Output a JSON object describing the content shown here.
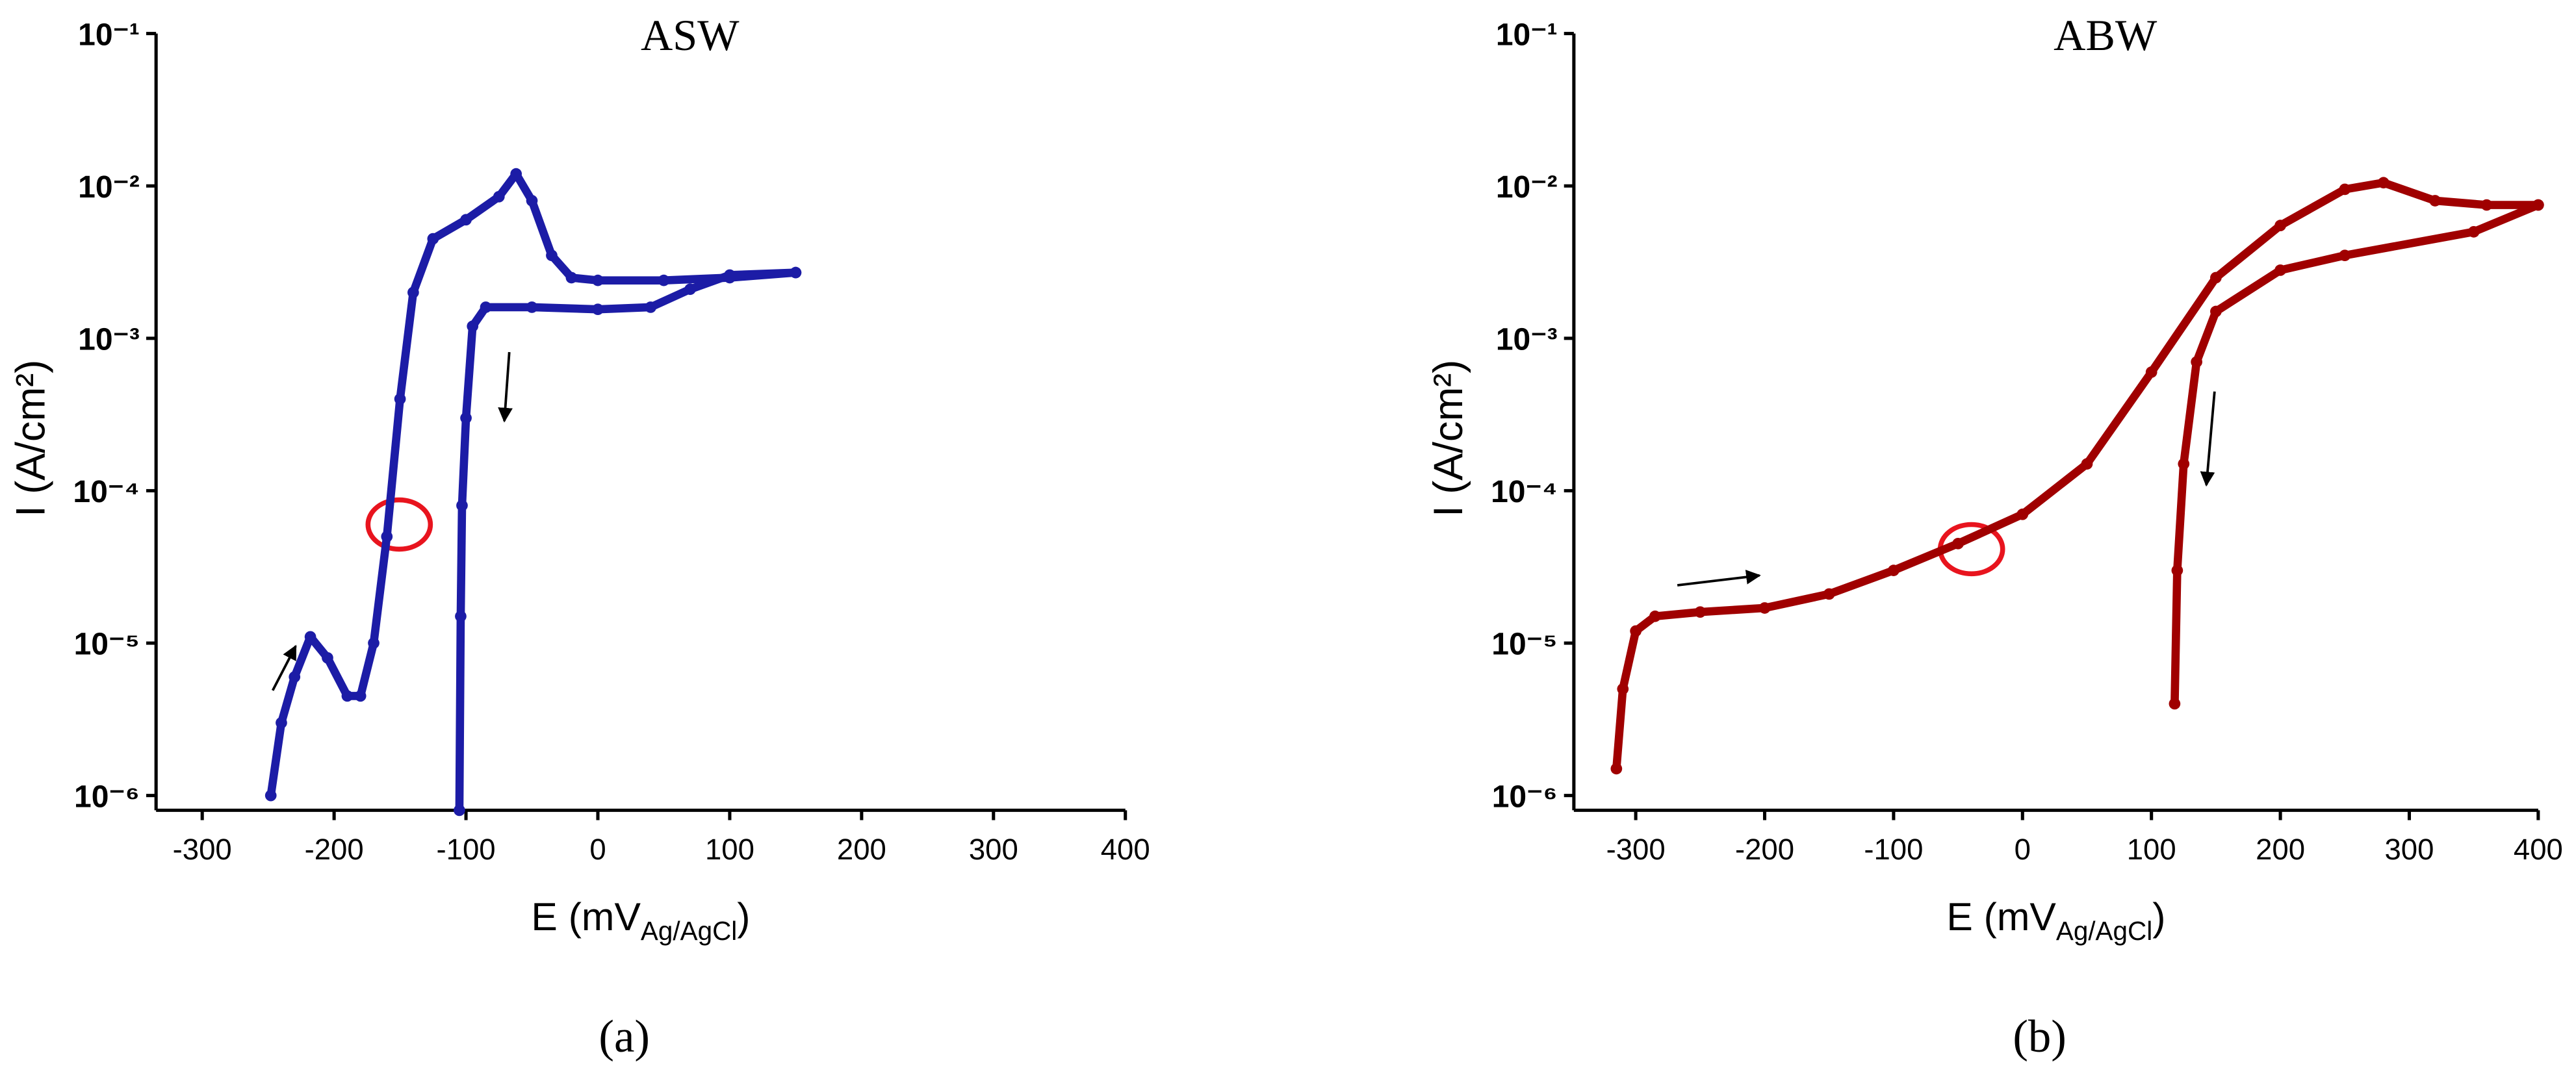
{
  "chart_data": [
    {
      "type": "line",
      "title": "ASW",
      "panel": "(a)",
      "ylabel": "I (A/cm²)",
      "xlabel": {
        "text": "E (mV",
        "subscript": "Ag/AgCl",
        "tail": ")"
      },
      "xlim": [
        -335,
        400
      ],
      "xticks": [
        -300,
        -200,
        -100,
        0,
        100,
        200,
        300,
        400
      ],
      "ylim": [
        8e-07,
        0.1
      ],
      "ylog": true,
      "yticks": [
        {
          "value": 1e-06,
          "label": "10⁻⁶"
        },
        {
          "value": 1e-05,
          "label": "10⁻⁵"
        },
        {
          "value": 0.0001,
          "label": "10⁻⁴"
        },
        {
          "value": 0.001,
          "label": "10⁻³"
        },
        {
          "value": 0.01,
          "label": "10⁻²"
        },
        {
          "value": 0.1,
          "label": "10⁻¹"
        }
      ],
      "series": [
        {
          "color": "#1c1ca6",
          "x": [
            -248,
            -240,
            -230,
            -218,
            -205,
            -190,
            -180,
            -170,
            -160,
            -150,
            -140,
            -125,
            -100,
            -75,
            -62,
            -50,
            -35,
            -20,
            0,
            50,
            100,
            150
          ],
          "values": [
            1e-06,
            3e-06,
            6e-06,
            1.1e-05,
            8e-06,
            4.5e-06,
            4.5e-06,
            1e-05,
            5e-05,
            0.0004,
            0.002,
            0.0045,
            0.006,
            0.0085,
            0.012,
            0.008,
            0.0035,
            0.0025,
            0.0024,
            0.0024,
            0.0025,
            0.0027
          ]
        },
        {
          "color": "#1c1ca6",
          "x": [
            150,
            100,
            70,
            40,
            0,
            -50,
            -85,
            -95,
            -100,
            -103,
            -104,
            -105
          ],
          "values": [
            0.0027,
            0.0026,
            0.0021,
            0.0016,
            0.00155,
            0.0016,
            0.0016,
            0.0012,
            0.0003,
            8e-05,
            1.5e-05,
            8e-07
          ]
        }
      ]
    },
    {
      "type": "line",
      "title": "ABW",
      "panel": "(b)",
      "ylabel": "I (A/cm²)",
      "xlabel": {
        "text": "E (mV",
        "subscript": "Ag/AgCl",
        "tail": ")"
      },
      "xlim": [
        -348,
        400
      ],
      "xticks": [
        -300,
        -200,
        -100,
        0,
        100,
        200,
        300,
        400
      ],
      "ylim": [
        8e-07,
        0.1
      ],
      "ylog": true,
      "yticks": [
        {
          "value": 1e-06,
          "label": "10⁻⁶"
        },
        {
          "value": 1e-05,
          "label": "10⁻⁵"
        },
        {
          "value": 0.0001,
          "label": "10⁻⁴"
        },
        {
          "value": 0.001,
          "label": "10⁻³"
        },
        {
          "value": 0.01,
          "label": "10⁻²"
        },
        {
          "value": 0.1,
          "label": "10⁻¹"
        }
      ],
      "series": [
        {
          "color": "#a00000",
          "x": [
            -315,
            -310,
            -300,
            -285,
            -250,
            -200,
            -150,
            -100,
            -50,
            0,
            50,
            100,
            150,
            200,
            250,
            280,
            320,
            360,
            400
          ],
          "values": [
            1.5e-06,
            5e-06,
            1.2e-05,
            1.5e-05,
            1.6e-05,
            1.7e-05,
            2.1e-05,
            3e-05,
            4.5e-05,
            7e-05,
            0.00015,
            0.0006,
            0.0025,
            0.0055,
            0.0095,
            0.0105,
            0.008,
            0.0075,
            0.0075
          ]
        },
        {
          "color": "#a00000",
          "x": [
            400,
            350,
            250,
            200,
            150,
            135,
            125,
            120,
            118
          ],
          "values": [
            0.0075,
            0.005,
            0.0035,
            0.0028,
            0.0015,
            0.0007,
            0.00015,
            3e-05,
            4e-06
          ]
        }
      ]
    }
  ]
}
